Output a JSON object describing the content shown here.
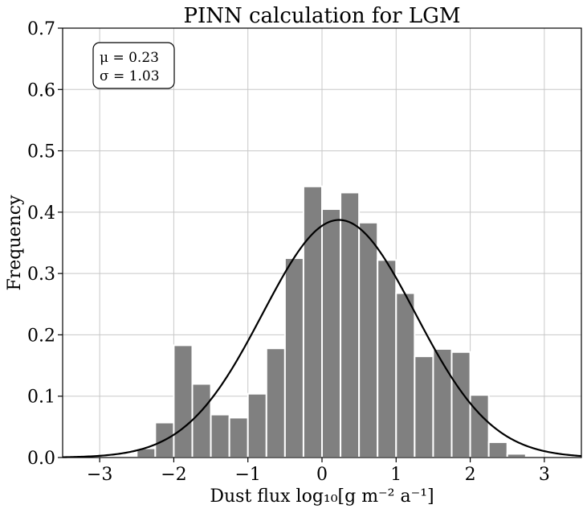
{
  "chart_data": {
    "type": "bar",
    "title": "PINN calculation for LGM",
    "xlabel": "Dust flux log₁₀[g m⁻² a⁻¹]",
    "ylabel": "Frequency",
    "xlim": [
      -3.5,
      3.5
    ],
    "ylim": [
      0,
      0.7
    ],
    "xticks": [
      -3,
      -2,
      -1,
      0,
      1,
      2,
      3
    ],
    "xtick_labels": [
      "−3",
      "−2",
      "−1",
      "0",
      "1",
      "2",
      "3"
    ],
    "yticks": [
      0.0,
      0.1,
      0.2,
      0.3,
      0.4,
      0.5,
      0.6,
      0.7
    ],
    "ytick_labels": [
      "0.0",
      "0.1",
      "0.2",
      "0.3",
      "0.4",
      "0.5",
      "0.6",
      "0.7"
    ],
    "grid": true,
    "bin_width": 0.25,
    "bins": [
      {
        "x0": -2.5,
        "value": 0.015
      },
      {
        "x0": -2.25,
        "value": 0.057
      },
      {
        "x0": -2.0,
        "value": 0.183
      },
      {
        "x0": -1.75,
        "value": 0.12
      },
      {
        "x0": -1.5,
        "value": 0.07
      },
      {
        "x0": -1.25,
        "value": 0.065
      },
      {
        "x0": -1.0,
        "value": 0.104
      },
      {
        "x0": -0.75,
        "value": 0.178
      },
      {
        "x0": -0.5,
        "value": 0.325
      },
      {
        "x0": -0.25,
        "value": 0.442
      },
      {
        "x0": 0.0,
        "value": 0.405
      },
      {
        "x0": 0.25,
        "value": 0.432
      },
      {
        "x0": 0.5,
        "value": 0.383
      },
      {
        "x0": 0.75,
        "value": 0.322
      },
      {
        "x0": 1.0,
        "value": 0.268
      },
      {
        "x0": 1.25,
        "value": 0.165
      },
      {
        "x0": 1.5,
        "value": 0.177
      },
      {
        "x0": 1.75,
        "value": 0.172
      },
      {
        "x0": 2.0,
        "value": 0.102
      },
      {
        "x0": 2.25,
        "value": 0.025
      },
      {
        "x0": 2.5,
        "value": 0.006
      }
    ],
    "fit": {
      "type": "normal",
      "mu": 0.23,
      "sigma": 1.03
    },
    "legend_position": "top-left",
    "annotation": {
      "mu_text": "μ = 0.23",
      "sigma_text": "σ = 1.03"
    }
  },
  "colors": {
    "bar": "#808080",
    "curve": "#000000",
    "grid": "#c8c8c8"
  }
}
